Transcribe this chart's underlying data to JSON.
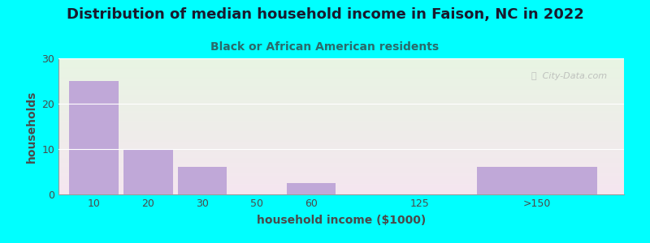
{
  "title": "Distribution of median household income in Faison, NC in 2022",
  "subtitle": "Black or African American residents",
  "xlabel": "household income ($1000)",
  "ylabel": "households",
  "background_color": "#00FFFF",
  "grad_top_color": "#e8f5e3",
  "grad_bottom_color": "#f5e6f0",
  "bar_color": "#c0a8d8",
  "bar_edge_color": "#ffffff",
  "title_color": "#1a1a2e",
  "subtitle_color": "#2a6a6a",
  "label_color": "#4a4a4a",
  "grid_color": "#ffffff",
  "watermark_text": "ⓘ  City-Data.com",
  "watermark_color": "#b0b0b0",
  "tick_labels": [
    "10",
    "20",
    "30",
    "50",
    "60",
    "125",
    ">150"
  ],
  "bar_lefts": [
    0.0,
    1.0,
    2.0,
    3.0,
    4.0,
    6.0,
    7.5
  ],
  "bar_widths": [
    0.9,
    0.9,
    0.9,
    0.9,
    0.9,
    0.9,
    2.2
  ],
  "bar_heights": [
    25,
    10,
    6,
    0,
    2.5,
    0,
    6
  ],
  "tick_positions": [
    0.45,
    1.45,
    2.45,
    3.45,
    4.45,
    6.45,
    8.6
  ],
  "xlim": [
    -0.2,
    10.2
  ],
  "ylim": [
    0,
    30
  ],
  "yticks": [
    0,
    10,
    20,
    30
  ],
  "title_fontsize": 13,
  "subtitle_fontsize": 10,
  "axis_label_fontsize": 10,
  "tick_fontsize": 9
}
